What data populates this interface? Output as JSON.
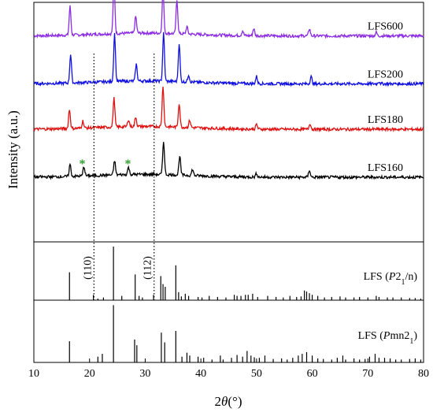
{
  "chart_data": {
    "type": "line",
    "xlabel_parts": [
      "2",
      "θ",
      "(°)"
    ],
    "ylabel": "Intensity (a.u.)",
    "xlim": [
      10,
      80
    ],
    "xticks": [
      10,
      20,
      30,
      40,
      50,
      60,
      70,
      80
    ],
    "grid": false,
    "patterns": [
      {
        "name": "LFS600",
        "color": "#8B2BE2",
        "baseline": 0.86,
        "peaks": [
          [
            16.5,
            0.12
          ],
          [
            24.4,
            0.22
          ],
          [
            28.3,
            0.07
          ],
          [
            33.2,
            0.18
          ],
          [
            35.7,
            0.14
          ],
          [
            37.5,
            0.03
          ],
          [
            47.5,
            0.02
          ],
          [
            49.5,
            0.03
          ],
          [
            59.5,
            0.03
          ],
          [
            71.5,
            0.015
          ]
        ]
      },
      {
        "name": "LFS200",
        "color": "#1010E0",
        "baseline": 0.66,
        "peaks": [
          [
            16.6,
            0.12
          ],
          [
            24.5,
            0.2
          ],
          [
            28.4,
            0.07
          ],
          [
            33.3,
            0.2
          ],
          [
            36.1,
            0.16
          ],
          [
            37.8,
            0.03
          ],
          [
            50.0,
            0.03
          ],
          [
            59.8,
            0.03
          ],
          [
            72.0,
            0.01
          ]
        ]
      },
      {
        "name": "LFS180",
        "color": "#E01010",
        "baseline": 0.47,
        "peaks": [
          [
            16.4,
            0.08
          ],
          [
            18.8,
            0.03
          ],
          [
            24.4,
            0.12
          ],
          [
            27.0,
            0.03
          ],
          [
            28.3,
            0.04
          ],
          [
            33.2,
            0.17
          ],
          [
            36.1,
            0.1
          ],
          [
            38.0,
            0.03
          ],
          [
            50.0,
            0.02
          ],
          [
            59.6,
            0.025
          ]
        ]
      },
      {
        "name": "LFS160",
        "color": "#000000",
        "baseline": 0.27,
        "peaks": [
          [
            16.5,
            0.05
          ],
          [
            19.0,
            0.04
          ],
          [
            24.5,
            0.06
          ],
          [
            27.0,
            0.03
          ],
          [
            33.3,
            0.14
          ],
          [
            36.2,
            0.08
          ],
          [
            38.5,
            0.025
          ],
          [
            50.0,
            0.015
          ],
          [
            59.5,
            0.03
          ]
        ]
      }
    ],
    "ref_p21n": {
      "label_parts": [
        "LFS (",
        "P",
        "2",
        "1",
        "/n)"
      ],
      "sticks": [
        [
          16.4,
          0.52
        ],
        [
          20.7,
          0.1
        ],
        [
          21.5,
          0.03
        ],
        [
          22.5,
          0.05
        ],
        [
          24.3,
          1.0
        ],
        [
          25.8,
          0.08
        ],
        [
          28.2,
          0.48
        ],
        [
          28.9,
          0.08
        ],
        [
          29.5,
          0.05
        ],
        [
          31.5,
          0.1
        ],
        [
          32.8,
          0.45
        ],
        [
          33.2,
          0.3
        ],
        [
          33.6,
          0.25
        ],
        [
          35.5,
          0.65
        ],
        [
          36.0,
          0.15
        ],
        [
          36.5,
          0.07
        ],
        [
          37.2,
          0.12
        ],
        [
          37.8,
          0.08
        ],
        [
          39.5,
          0.06
        ],
        [
          40.2,
          0.05
        ],
        [
          41.5,
          0.08
        ],
        [
          43.0,
          0.06
        ],
        [
          44.5,
          0.05
        ],
        [
          46.0,
          0.1
        ],
        [
          46.5,
          0.08
        ],
        [
          47.2,
          0.08
        ],
        [
          48.0,
          0.1
        ],
        [
          48.5,
          0.1
        ],
        [
          49.3,
          0.12
        ],
        [
          50.2,
          0.06
        ],
        [
          52.0,
          0.08
        ],
        [
          53.5,
          0.06
        ],
        [
          54.8,
          0.05
        ],
        [
          56.0,
          0.08
        ],
        [
          57.2,
          0.06
        ],
        [
          58.0,
          0.07
        ],
        [
          58.6,
          0.18
        ],
        [
          59.0,
          0.16
        ],
        [
          59.5,
          0.13
        ],
        [
          60.0,
          0.1
        ],
        [
          61.0,
          0.08
        ],
        [
          62.2,
          0.05
        ],
        [
          63.5,
          0.06
        ],
        [
          65.0,
          0.07
        ],
        [
          66.0,
          0.05
        ],
        [
          67.5,
          0.05
        ],
        [
          68.5,
          0.06
        ],
        [
          70.0,
          0.05
        ],
        [
          71.5,
          0.08
        ],
        [
          72.0,
          0.06
        ],
        [
          73.5,
          0.05
        ],
        [
          74.5,
          0.05
        ],
        [
          76.0,
          0.05
        ],
        [
          77.5,
          0.04
        ],
        [
          78.5,
          0.04
        ],
        [
          79.5,
          0.03
        ]
      ]
    },
    "ref_pmn21": {
      "label_parts": [
        "LFS (",
        "P",
        "mn2",
        "1",
        ")"
      ],
      "sticks": [
        [
          16.4,
          0.37
        ],
        [
          21.5,
          0.1
        ],
        [
          22.3,
          0.15
        ],
        [
          24.3,
          1.0
        ],
        [
          28.1,
          0.4
        ],
        [
          28.5,
          0.3
        ],
        [
          32.9,
          0.52
        ],
        [
          33.5,
          0.35
        ],
        [
          35.5,
          0.55
        ],
        [
          36.6,
          0.1
        ],
        [
          37.5,
          0.17
        ],
        [
          38.0,
          0.12
        ],
        [
          39.5,
          0.1
        ],
        [
          40.5,
          0.08
        ],
        [
          42.0,
          0.05
        ],
        [
          43.5,
          0.12
        ],
        [
          44.0,
          0.05
        ],
        [
          45.5,
          0.08
        ],
        [
          46.5,
          0.13
        ],
        [
          47.5,
          0.1
        ],
        [
          48.3,
          0.2
        ],
        [
          49.0,
          0.12
        ],
        [
          49.6,
          0.09
        ],
        [
          50.5,
          0.08
        ],
        [
          51.5,
          0.12
        ],
        [
          53.0,
          0.06
        ],
        [
          54.5,
          0.07
        ],
        [
          55.5,
          0.05
        ],
        [
          56.5,
          0.08
        ],
        [
          57.5,
          0.12
        ],
        [
          58.2,
          0.15
        ],
        [
          59.0,
          0.18
        ],
        [
          60.0,
          0.12
        ],
        [
          61.0,
          0.07
        ],
        [
          62.0,
          0.06
        ],
        [
          63.5,
          0.05
        ],
        [
          64.5,
          0.08
        ],
        [
          65.5,
          0.12
        ],
        [
          66.0,
          0.05
        ],
        [
          67.5,
          0.07
        ],
        [
          68.5,
          0.05
        ],
        [
          69.5,
          0.06
        ],
        [
          70.3,
          0.1
        ],
        [
          71.3,
          0.15
        ],
        [
          72.0,
          0.08
        ],
        [
          73.0,
          0.08
        ],
        [
          74.0,
          0.07
        ],
        [
          75.0,
          0.05
        ],
        [
          76.0,
          0.05
        ],
        [
          77.5,
          0.06
        ],
        [
          78.5,
          0.07
        ],
        [
          79.5,
          0.05
        ]
      ]
    },
    "reference_lines": [
      {
        "label": "(110)",
        "x": 20.8
      },
      {
        "label": "(112)",
        "x": 31.6
      }
    ],
    "annotations": [
      {
        "label": "*",
        "x": 18.7,
        "series": "LFS160",
        "color": "#2E9E2E"
      },
      {
        "label": "*",
        "x": 26.9,
        "series": "LFS160",
        "color": "#2E9E2E"
      }
    ]
  }
}
